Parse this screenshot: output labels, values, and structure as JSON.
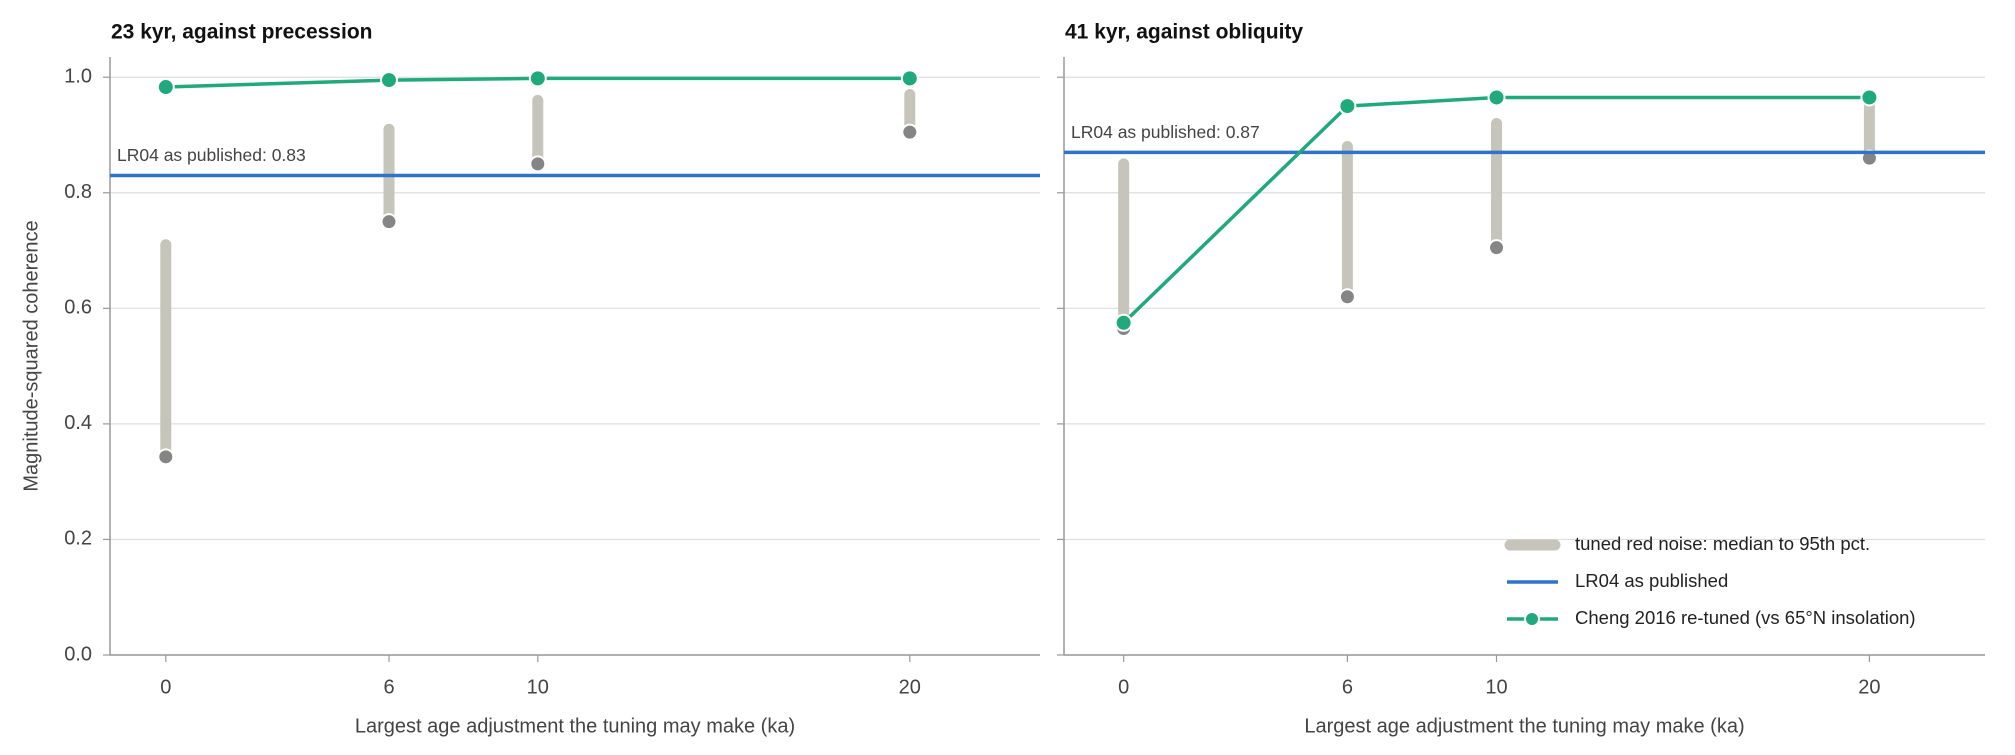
{
  "chart_data": [
    {
      "type": "line",
      "title": "23 kyr, against precession",
      "xlabel": "Largest age adjustment the tuning may make (ka)",
      "ylabel": "Magnitude-squared coherence",
      "x": [
        0,
        6,
        10,
        20
      ],
      "xlim": [
        -1.5,
        23.5
      ],
      "xticks": [
        0,
        6,
        10,
        20
      ],
      "ylim": [
        0,
        1.035
      ],
      "yticks": [
        {
          "value": 0,
          "label": "0.0"
        },
        0.2,
        0.4,
        0.6,
        0.8,
        {
          "value": 1,
          "label": "1.0"
        }
      ],
      "grid": true,
      "series": [
        {
          "type": "range",
          "color": "#c5c5bb",
          "median_color": "#858585",
          "values": [
            0.343,
            0.75,
            0.85,
            0.905
          ],
          "upper": [
            0.71,
            0.91,
            0.96,
            0.97
          ]
        },
        {
          "type": "hline",
          "color": "#2f74c8",
          "value": 0.83,
          "annotation": "LR04 as published: 0.83"
        },
        {
          "type": "line",
          "color": "#20a97a",
          "values": [
            0.983,
            0.995,
            0.998,
            0.998
          ]
        }
      ]
    },
    {
      "type": "line",
      "title": "41 kyr, against obliquity",
      "xlabel": "Largest age adjustment the tuning may make (ka)",
      "x": [
        0,
        6,
        10,
        20
      ],
      "xlim": [
        -1.6,
        23.1
      ],
      "xticks": [
        0,
        6,
        10,
        20
      ],
      "ylim": [
        0,
        1.035
      ],
      "yticks": [
        0,
        0.2,
        0.4,
        0.6,
        0.8,
        1
      ],
      "ytick_labels": false,
      "grid": true,
      "legend": "lower right",
      "series": [
        {
          "name": "tuned red noise: median to 95th pct.",
          "type": "range",
          "color": "#c5c5bb",
          "median_color": "#858585",
          "values": [
            0.565,
            0.62,
            0.705,
            0.86
          ],
          "upper": [
            0.85,
            0.88,
            0.92,
            0.97
          ]
        },
        {
          "name": "LR04 as published",
          "type": "hline",
          "color": "#2f74c8",
          "value": 0.87,
          "annotation": "LR04 as published: 0.87"
        },
        {
          "name": "Cheng 2016 re-tuned (vs 65°N insolation)",
          "type": "line",
          "color": "#20a97a",
          "values": [
            0.575,
            0.95,
            0.965,
            0.965
          ]
        }
      ]
    }
  ]
}
